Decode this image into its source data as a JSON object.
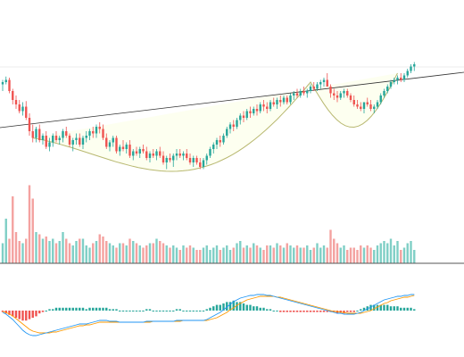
{
  "colors": {
    "up": "#26a69a",
    "down": "#ef5350",
    "volume_up": "#7fcfc6",
    "volume_down": "#f4a2a0",
    "cup_fill": "#fdfff0",
    "cup_stroke": "#b8b870",
    "resistance_line": "#333333",
    "baseline": "#555555",
    "macd_line": "#2196f3",
    "signal_line": "#ff9800",
    "hist_up": "#26a69a",
    "hist_down": "#ef5350"
  },
  "chart_data": [
    {
      "type": "candlestick",
      "pattern": "cup-and-handle",
      "series": [
        {
          "values": [
            [
              18,
              22,
              12,
              20
            ],
            [
              20,
              25,
              18,
              22
            ],
            [
              22,
              24,
              10,
              12
            ],
            [
              12,
              14,
              0,
              4
            ],
            [
              4,
              8,
              -4,
              0
            ],
            [
              0,
              4,
              -8,
              -6
            ],
            [
              -6,
              2,
              -10,
              -2
            ],
            [
              -2,
              3,
              -14,
              -12
            ],
            [
              -12,
              -8,
              -28,
              -24
            ],
            [
              -24,
              -18,
              -34,
              -30
            ],
            [
              -30,
              -20,
              -34,
              -22
            ],
            [
              -22,
              -18,
              -34,
              -32
            ],
            [
              -32,
              -26,
              -36,
              -28
            ],
            [
              -28,
              -24,
              -40,
              -38
            ],
            [
              -38,
              -30,
              -42,
              -34
            ],
            [
              -34,
              -26,
              -38,
              -28
            ],
            [
              -28,
              -24,
              -34,
              -32
            ],
            [
              -32,
              -28,
              -36,
              -30
            ],
            [
              -30,
              -22,
              -34,
              -24
            ],
            [
              -24,
              -20,
              -30,
              -28
            ],
            [
              -28,
              -26,
              -38,
              -36
            ],
            [
              -36,
              -30,
              -42,
              -32
            ],
            [
              -32,
              -26,
              -36,
              -30
            ],
            [
              -30,
              -26,
              -38,
              -36
            ],
            [
              -36,
              -28,
              -40,
              -30
            ],
            [
              -30,
              -24,
              -34,
              -28
            ],
            [
              -28,
              -22,
              -32,
              -24
            ],
            [
              -24,
              -20,
              -30,
              -26
            ],
            [
              -26,
              -18,
              -30,
              -20
            ],
            [
              -20,
              -16,
              -26,
              -22
            ],
            [
              -22,
              -18,
              -32,
              -30
            ],
            [
              -30,
              -26,
              -40,
              -38
            ],
            [
              -38,
              -32,
              -42,
              -34
            ],
            [
              -34,
              -28,
              -38,
              -30
            ],
            [
              -30,
              -28,
              -44,
              -42
            ],
            [
              -42,
              -36,
              -46,
              -38
            ],
            [
              -38,
              -32,
              -42,
              -40
            ],
            [
              -40,
              -34,
              -44,
              -36
            ],
            [
              -36,
              -32,
              -48,
              -46
            ],
            [
              -46,
              -40,
              -50,
              -42
            ],
            [
              -42,
              -38,
              -46,
              -44
            ],
            [
              -44,
              -38,
              -48,
              -40
            ],
            [
              -40,
              -36,
              -44,
              -42
            ],
            [
              -42,
              -38,
              -50,
              -48
            ],
            [
              -48,
              -42,
              -52,
              -44
            ],
            [
              -44,
              -40,
              -48,
              -46
            ],
            [
              -46,
              -40,
              -50,
              -42
            ],
            [
              -42,
              -38,
              -48,
              -46
            ],
            [
              -46,
              -42,
              -54,
              -52
            ],
            [
              -52,
              -46,
              -58,
              -48
            ],
            [
              -48,
              -44,
              -52,
              -50
            ],
            [
              -50,
              -44,
              -56,
              -46
            ],
            [
              -46,
              -40,
              -50,
              -44
            ],
            [
              -44,
              -40,
              -48,
              -46
            ],
            [
              -46,
              -42,
              -50,
              -44
            ],
            [
              -44,
              -40,
              -50,
              -48
            ],
            [
              -48,
              -44,
              -54,
              -52
            ],
            [
              -52,
              -46,
              -56,
              -48
            ],
            [
              -48,
              -46,
              -54,
              -52
            ],
            [
              -52,
              -48,
              -58,
              -56
            ],
            [
              -56,
              -48,
              -58,
              -50
            ],
            [
              -50,
              -44,
              -54,
              -46
            ],
            [
              -46,
              -38,
              -48,
              -40
            ],
            [
              -40,
              -34,
              -44,
              -36
            ],
            [
              -36,
              -30,
              -40,
              -32
            ],
            [
              -32,
              -28,
              -38,
              -34
            ],
            [
              -34,
              -26,
              -36,
              -28
            ],
            [
              -28,
              -20,
              -30,
              -22
            ],
            [
              -22,
              -16,
              -26,
              -18
            ],
            [
              -18,
              -14,
              -24,
              -20
            ],
            [
              -20,
              -12,
              -22,
              -14
            ],
            [
              -14,
              -8,
              -18,
              -10
            ],
            [
              -10,
              -6,
              -16,
              -12
            ],
            [
              -12,
              -4,
              -14,
              -6
            ],
            [
              -6,
              -2,
              -12,
              -8
            ],
            [
              -8,
              -2,
              -10,
              -4
            ],
            [
              -4,
              0,
              -10,
              -6
            ],
            [
              -6,
              2,
              -8,
              0
            ],
            [
              0,
              4,
              -6,
              -2
            ],
            [
              -2,
              2,
              -8,
              -4
            ],
            [
              -4,
              4,
              -6,
              2
            ],
            [
              2,
              6,
              -2,
              0
            ],
            [
              0,
              6,
              -4,
              4
            ],
            [
              4,
              8,
              -2,
              2
            ],
            [
              2,
              8,
              0,
              6
            ],
            [
              6,
              8,
              0,
              2
            ],
            [
              2,
              10,
              0,
              8
            ],
            [
              8,
              12,
              4,
              10
            ],
            [
              10,
              14,
              6,
              8
            ],
            [
              8,
              14,
              6,
              12
            ],
            [
              12,
              16,
              8,
              10
            ],
            [
              10,
              14,
              6,
              12
            ],
            [
              12,
              18,
              10,
              16
            ],
            [
              16,
              20,
              12,
              14
            ],
            [
              14,
              20,
              12,
              18
            ],
            [
              18,
              22,
              14,
              20
            ],
            [
              20,
              24,
              16,
              22
            ],
            [
              22,
              28,
              18,
              16
            ],
            [
              16,
              18,
              6,
              10
            ],
            [
              10,
              14,
              4,
              8
            ],
            [
              8,
              12,
              2,
              6
            ],
            [
              6,
              12,
              4,
              10
            ],
            [
              10,
              14,
              6,
              12
            ],
            [
              12,
              14,
              6,
              8
            ],
            [
              8,
              10,
              2,
              4
            ],
            [
              4,
              8,
              -2,
              0
            ],
            [
              0,
              4,
              -4,
              -2
            ],
            [
              -2,
              2,
              -6,
              -4
            ],
            [
              -4,
              0,
              -8,
              2
            ],
            [
              2,
              6,
              -2,
              0
            ],
            [
              0,
              4,
              -6,
              -4
            ],
            [
              -4,
              0,
              -8,
              -2
            ],
            [
              -2,
              4,
              -4,
              2
            ],
            [
              2,
              10,
              0,
              8
            ],
            [
              8,
              14,
              6,
              12
            ],
            [
              12,
              18,
              10,
              16
            ],
            [
              16,
              22,
              14,
              20
            ],
            [
              20,
              24,
              18,
              22
            ],
            [
              22,
              26,
              18,
              24
            ],
            [
              24,
              28,
              20,
              22
            ],
            [
              22,
              28,
              20,
              26
            ],
            [
              26,
              32,
              24,
              30
            ],
            [
              30,
              36,
              28,
              34
            ],
            [
              34,
              38,
              30,
              36
            ]
          ]
        }
      ],
      "volume": [
        18,
        40,
        22,
        60,
        28,
        20,
        18,
        22,
        70,
        58,
        28,
        26,
        22,
        24,
        20,
        22,
        18,
        20,
        28,
        22,
        18,
        16,
        20,
        22,
        22,
        16,
        14,
        18,
        20,
        26,
        24,
        20,
        18,
        16,
        14,
        18,
        18,
        16,
        22,
        20,
        18,
        16,
        14,
        16,
        18,
        18,
        22,
        20,
        18,
        16,
        14,
        16,
        14,
        12,
        16,
        14,
        16,
        14,
        12,
        12,
        14,
        16,
        12,
        14,
        16,
        12,
        14,
        16,
        12,
        14,
        18,
        20,
        14,
        16,
        14,
        18,
        16,
        14,
        12,
        16,
        16,
        14,
        18,
        16,
        14,
        18,
        16,
        14,
        16,
        14,
        14,
        16,
        12,
        14,
        18,
        14,
        16,
        14,
        30,
        22,
        18,
        14,
        16,
        12,
        14,
        14,
        12,
        16,
        14,
        16,
        14,
        12,
        16,
        18,
        20,
        18,
        22,
        16,
        20,
        12,
        14,
        18,
        20,
        12
      ],
      "macd": [
        -2,
        -4,
        -7,
        -10,
        -14,
        -18,
        -22,
        -25,
        -27,
        -28,
        -28,
        -27,
        -26,
        -25,
        -24,
        -23,
        -22,
        -21,
        -20,
        -19,
        -18,
        -17,
        -16,
        -15,
        -15,
        -15,
        -14,
        -13,
        -12,
        -11,
        -11,
        -11,
        -12,
        -12,
        -12,
        -13,
        -13,
        -13,
        -13,
        -13,
        -13,
        -13,
        -13,
        -12,
        -12,
        -12,
        -12,
        -12,
        -12,
        -12,
        -12,
        -12,
        -11,
        -11,
        -11,
        -11,
        -11,
        -11,
        -11,
        -11,
        -11,
        -10,
        -8,
        -6,
        -4,
        -2,
        1,
        4,
        7,
        10,
        12,
        14,
        15,
        16,
        17,
        17,
        18,
        18,
        18,
        17,
        17,
        16,
        15,
        14,
        13,
        12,
        11,
        10,
        9,
        8,
        7,
        6,
        5,
        4,
        3,
        2,
        1,
        0,
        -1,
        -2,
        -3,
        -3,
        -4,
        -4,
        -4,
        -4,
        -3,
        -2,
        0,
        2,
        4,
        6,
        8,
        10,
        12,
        13,
        14,
        15,
        16,
        16,
        17,
        17,
        18,
        18
      ],
      "signal": [
        -1,
        -2,
        -4,
        -6,
        -9,
        -12,
        -15,
        -18,
        -21,
        -23,
        -24,
        -25,
        -25,
        -25,
        -25,
        -24,
        -24,
        -23,
        -22,
        -21,
        -20,
        -19,
        -18,
        -17,
        -17,
        -16,
        -16,
        -15,
        -14,
        -13,
        -13,
        -13,
        -13,
        -13,
        -13,
        -13,
        -13,
        -13,
        -13,
        -13,
        -13,
        -13,
        -13,
        -13,
        -13,
        -12,
        -12,
        -12,
        -12,
        -12,
        -12,
        -12,
        -12,
        -12,
        -11,
        -11,
        -11,
        -11,
        -11,
        -11,
        -11,
        -11,
        -10,
        -9,
        -8,
        -6,
        -4,
        -2,
        1,
        3,
        6,
        8,
        10,
        12,
        13,
        14,
        15,
        16,
        16,
        16,
        16,
        16,
        15,
        15,
        14,
        13,
        12,
        11,
        10,
        9,
        8,
        7,
        6,
        5,
        4,
        3,
        2,
        1,
        0,
        -1,
        -1,
        -2,
        -2,
        -3,
        -3,
        -3,
        -3,
        -3,
        -2,
        -1,
        0,
        2,
        4,
        6,
        8,
        9,
        11,
        12,
        13,
        14,
        15,
        15,
        16,
        17
      ]
    }
  ]
}
